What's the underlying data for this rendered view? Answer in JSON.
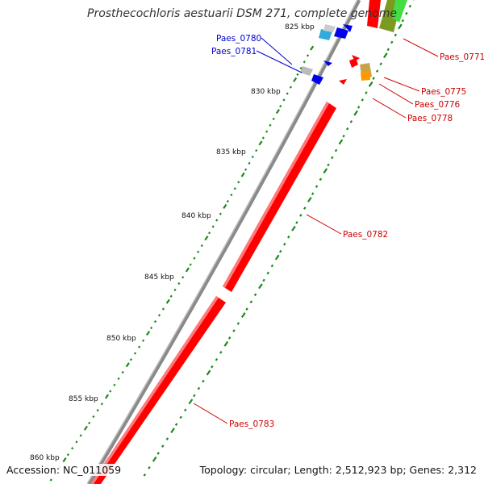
{
  "title": "Prosthecochloris aestuarii DSM 271, complete genome",
  "accession": "Accession: NC_011059",
  "summary": "Topology: circular; Length: 2,512,923 bp; Genes: 2,312",
  "colors": {
    "backbone": "#808080",
    "forward_cds": "#ff0000",
    "reverse_cds": "#0000ee",
    "gc_skew": "#1a8a1a",
    "label_forward": "#cc0000",
    "label_reverse": "#0000cc"
  },
  "ticks": [
    {
      "label": "825 kbp"
    },
    {
      "label": "830 kbp"
    },
    {
      "label": "835 kbp"
    },
    {
      "label": "840 kbp"
    },
    {
      "label": "845 kbp"
    },
    {
      "label": "850 kbp"
    },
    {
      "label": "855 kbp"
    },
    {
      "label": "860 kbp"
    }
  ],
  "gene_labels": [
    {
      "name": "Paes_0771",
      "strand": "forward"
    },
    {
      "name": "Paes_0775",
      "strand": "forward"
    },
    {
      "name": "Paes_0776",
      "strand": "forward"
    },
    {
      "name": "Paes_0778",
      "strand": "forward"
    },
    {
      "name": "Paes_0780",
      "strand": "reverse"
    },
    {
      "name": "Paes_0781",
      "strand": "reverse"
    },
    {
      "name": "Paes_0782",
      "strand": "forward"
    },
    {
      "name": "Paes_0783",
      "strand": "forward"
    }
  ]
}
